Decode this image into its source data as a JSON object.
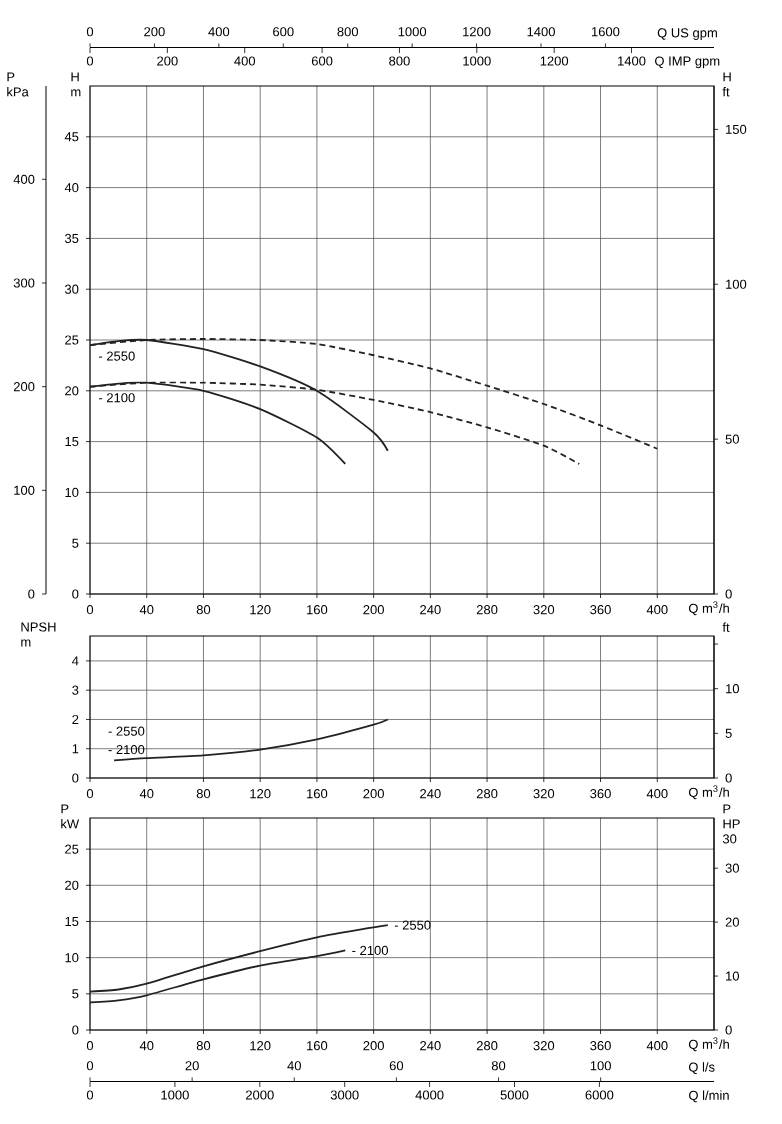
{
  "chart_data": [
    {
      "type": "line",
      "xlabel": "Q m$^{3}$/h",
      "ylabel": "H m",
      "y2label": "H ft",
      "y3label": "P kPa",
      "x2label": "Q US gpm",
      "xlim": [
        0,
        440
      ],
      "xticks": [
        0,
        40,
        80,
        120,
        160,
        200,
        240,
        280,
        320,
        360,
        400
      ],
      "ylim": [
        0,
        50
      ],
      "yticks": [
        0,
        5,
        10,
        15,
        20,
        25,
        30,
        35,
        40,
        45
      ],
      "y2lim": [
        0,
        164
      ],
      "y2ticks": [
        0,
        50,
        100,
        150
      ],
      "y3lim": [
        0,
        490
      ],
      "y3ticks": [
        0,
        100,
        200,
        300,
        400
      ],
      "x2lim": [
        0,
        1937
      ],
      "x2ticks": [
        0,
        200,
        400,
        600,
        800,
        1000,
        1200,
        1400,
        1600
      ],
      "grid": true,
      "series": [
        {
          "name": "- 2550",
          "color": "#222222",
          "line_style": "solid",
          "x": [
            0,
            20,
            40,
            80,
            120,
            160,
            200,
            210
          ],
          "values": [
            24.5,
            24.9,
            25.0,
            24.1,
            22.4,
            20.0,
            15.9,
            14.1
          ]
        },
        {
          "name": "- 2100",
          "color": "#222222",
          "line_style": "solid",
          "x": [
            0,
            20,
            40,
            80,
            120,
            160,
            180
          ],
          "values": [
            20.4,
            20.7,
            20.8,
            20.0,
            18.2,
            15.4,
            12.8
          ]
        },
        {
          "color": "#222222",
          "line_style": "dashed",
          "x": [
            0,
            40,
            80,
            120,
            160,
            200,
            240,
            280,
            320,
            360,
            400
          ],
          "values": [
            24.5,
            25.0,
            25.1,
            25.0,
            24.6,
            23.5,
            22.2,
            20.5,
            18.7,
            16.6,
            14.3
          ]
        },
        {
          "color": "#222222",
          "line_style": "dashed",
          "x": [
            0,
            40,
            80,
            120,
            160,
            200,
            240,
            280,
            320,
            345
          ],
          "values": [
            20.4,
            20.8,
            20.8,
            20.6,
            20.1,
            19.1,
            17.9,
            16.4,
            14.6,
            12.8
          ]
        }
      ],
      "annotations": [
        "0",
        "200",
        "400",
        "600",
        "800",
        "1000",
        "1200",
        "1400",
        "Q IMP gpm"
      ]
    },
    {
      "type": "line",
      "xlabel": "Q m$^{3}$/h",
      "ylabel": "NPSH m",
      "y2label": "ft",
      "xlim": [
        0,
        440
      ],
      "xticks": [
        0,
        40,
        80,
        120,
        160,
        200,
        240,
        280,
        320,
        360,
        400
      ],
      "ylim": [
        0,
        4.85
      ],
      "yticks": [
        0,
        1,
        2,
        3,
        4
      ],
      "y2lim": [
        0,
        15.9
      ],
      "y2ticks": [
        0,
        5,
        10,
        {
          "value": 15,
          "label": null
        }
      ],
      "grid": true,
      "series": [
        {
          "color": "#222222",
          "line_style": "solid",
          "x": [
            17,
            40,
            80,
            120,
            160,
            200,
            210
          ],
          "values": [
            0.6,
            0.68,
            0.77,
            0.97,
            1.32,
            1.82,
            2.0
          ]
        }
      ],
      "annotations": [
        "- 2550",
        "- 2100"
      ]
    },
    {
      "type": "line",
      "xlabel": "Q m$^{3}$/h",
      "ylabel": "P kW",
      "y2label": "P HP 30",
      "x2label": "Q l/s",
      "xlim": [
        0,
        440
      ],
      "xticks": [
        0,
        40,
        80,
        120,
        160,
        200,
        240,
        280,
        320,
        360,
        400
      ],
      "ylim": [
        0,
        29.3
      ],
      "yticks": [
        0,
        5,
        10,
        15,
        20,
        25
      ],
      "y2lim": [
        0,
        39.3
      ],
      "y2ticks": [
        0,
        10,
        20,
        30
      ],
      "x2lim": [
        0,
        122.2
      ],
      "x2ticks": [
        0,
        20,
        40,
        60,
        80,
        100
      ],
      "grid": true,
      "series": [
        {
          "name": "- 2550",
          "color": "#222222",
          "line_style": "solid",
          "x": [
            0,
            20,
            40,
            80,
            120,
            160,
            200,
            210
          ],
          "values": [
            5.3,
            5.6,
            6.4,
            8.8,
            10.9,
            12.8,
            14.2,
            14.5
          ]
        },
        {
          "name": "- 2100",
          "color": "#222222",
          "line_style": "solid",
          "x": [
            0,
            20,
            40,
            80,
            120,
            160,
            180
          ],
          "values": [
            3.8,
            4.1,
            4.8,
            7.0,
            8.9,
            10.2,
            11.0
          ]
        }
      ],
      "annotations": [
        "0",
        "1000",
        "2000",
        "3000",
        "4000",
        "5000",
        "6000",
        "Q l/min"
      ]
    }
  ]
}
